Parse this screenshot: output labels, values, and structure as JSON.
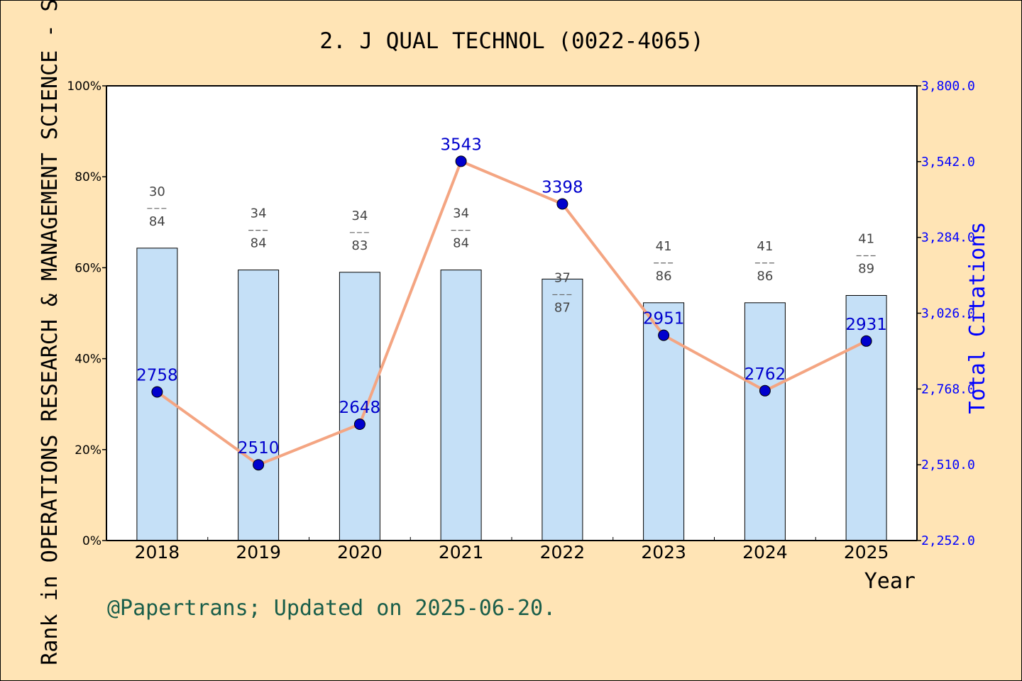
{
  "chart_data": {
    "type": "bar+line",
    "title": "2. J QUAL TECHNOL (0022-4065)",
    "xlabel": "Year",
    "ylabel_left": "Rank in OPERATIONS RESEARCH & MANAGEMENT SCIENCE - SCIE",
    "ylabel_right": "Total Citations",
    "categories": [
      "2018",
      "2019",
      "2020",
      "2021",
      "2022",
      "2023",
      "2024",
      "2025"
    ],
    "left_axis": {
      "ylim": [
        0,
        100
      ],
      "ticks": [
        0,
        20,
        40,
        60,
        80,
        100
      ],
      "tick_labels": [
        "0%",
        "20%",
        "40%",
        "60%",
        "80%",
        "100%"
      ]
    },
    "right_axis": {
      "ylim": [
        2252,
        3800
      ],
      "ticks": [
        2252,
        2510,
        2768,
        3026,
        3284,
        3542,
        3800
      ],
      "tick_labels": [
        "2,252.0",
        "2,510.0",
        "2,768.0",
        "3,026.0",
        "3,284.0",
        "3,542.0",
        "3,800.0"
      ]
    },
    "bars": {
      "ranks": [
        30,
        34,
        34,
        34,
        37,
        41,
        41,
        41
      ],
      "totals": [
        84,
        84,
        83,
        84,
        87,
        86,
        86,
        89
      ],
      "values_percent": [
        64.3,
        59.5,
        59.0,
        59.5,
        57.5,
        52.3,
        52.3,
        53.9
      ],
      "color": "#c5e0f7"
    },
    "line": {
      "values": [
        2758,
        2510,
        2648,
        3543,
        3398,
        2951,
        2762,
        2931
      ],
      "color": "#f4a582",
      "marker_color": "#0000cd"
    },
    "footer": "@Papertrans; Updated on 2025-06-20."
  }
}
